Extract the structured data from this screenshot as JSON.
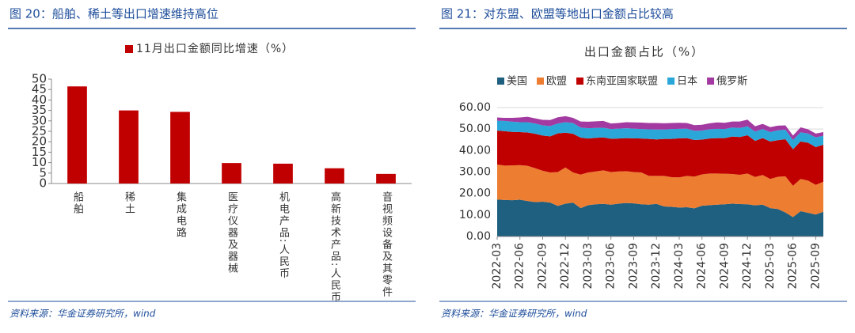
{
  "chart_data": [
    {
      "type": "bar",
      "caption": "图 20：船舶、稀土等出口增速维持高位",
      "source": "资料来源：华金证券研究所，wind",
      "categories": [
        "船舶",
        "稀土",
        "集成电路",
        "医疗仪器及器械",
        "机电产品:人民币",
        "高新技术产品:人民币",
        "音视频设备及其零件"
      ],
      "series": [
        {
          "name": "11月出口金额同比增速（%）",
          "color": "#c00000",
          "values": [
            46.5,
            35.0,
            34.3,
            9.8,
            9.5,
            7.3,
            4.6
          ]
        }
      ],
      "ylim": [
        0,
        50
      ],
      "yticks": [
        0,
        5,
        10,
        15,
        20,
        25,
        30,
        35,
        40,
        45,
        50
      ],
      "grid": false
    },
    {
      "type": "stacked-area",
      "caption": "图 21：对东盟、欧盟等地出口金额占比较高",
      "title": "出口金额占比（%）",
      "source": "资料来源：华金证券研究所，wind",
      "categories": [
        "2022-03",
        null,
        null,
        "2022-06",
        null,
        null,
        "2022-09",
        null,
        null,
        "2022-12",
        null,
        null,
        "2023-03",
        null,
        null,
        "2023-06",
        null,
        null,
        "2023-09",
        null,
        null,
        "2023-12",
        null,
        null,
        "2024-03",
        null,
        null,
        "2024-06",
        null,
        null,
        "2024-09",
        null,
        null,
        "2024-12",
        null,
        null,
        "2025-03",
        null,
        null,
        "2025-06",
        null,
        null,
        "2025-09",
        null
      ],
      "series": [
        {
          "name": "美国",
          "color": "#1f5f7f",
          "values": [
            17.2,
            17.0,
            16.9,
            17.1,
            16.5,
            16.0,
            16.2,
            15.8,
            14.2,
            15.3,
            15.8,
            13.2,
            14.6,
            15.0,
            15.2,
            14.8,
            15.3,
            15.6,
            15.4,
            15.0,
            14.8,
            15.2,
            14.0,
            13.8,
            13.5,
            13.6,
            13.1,
            14.3,
            14.6,
            14.8,
            15.0,
            15.3,
            15.1,
            15.0,
            14.5,
            14.8,
            13.2,
            12.8,
            11.2,
            9.0,
            11.8,
            11.0,
            10.2,
            11.5
          ]
        },
        {
          "name": "欧盟",
          "color": "#ed7d31",
          "values": [
            16.3,
            16.0,
            16.2,
            16.1,
            16.4,
            15.8,
            14.4,
            14.0,
            15.8,
            16.8,
            14.0,
            15.6,
            15.2,
            15.3,
            15.6,
            15.2,
            15.0,
            14.8,
            14.6,
            14.8,
            13.4,
            13.0,
            14.2,
            13.8,
            14.0,
            14.6,
            14.8,
            14.6,
            14.7,
            14.5,
            14.2,
            13.8,
            13.6,
            14.3,
            13.2,
            13.8,
            13.6,
            15.0,
            16.8,
            14.6,
            15.0,
            15.0,
            13.8,
            14.0
          ]
        },
        {
          "name": "东南亚国家联盟",
          "color": "#c00000",
          "values": [
            15.8,
            16.0,
            15.6,
            15.4,
            15.5,
            16.0,
            16.4,
            16.8,
            18.0,
            16.2,
            18.0,
            17.2,
            15.8,
            15.6,
            15.3,
            15.5,
            15.3,
            15.4,
            15.7,
            15.8,
            17.2,
            17.0,
            17.2,
            17.8,
            18.2,
            17.6,
            17.0,
            16.2,
            16.3,
            16.5,
            16.6,
            17.4,
            17.6,
            17.8,
            16.8,
            17.2,
            17.4,
            17.0,
            17.3,
            17.0,
            17.4,
            17.6,
            17.6,
            17.2
          ]
        },
        {
          "name": "日本",
          "color": "#2aa7d8",
          "values": [
            4.6,
            4.8,
            4.7,
            4.6,
            4.8,
            4.8,
            4.7,
            4.8,
            4.6,
            4.9,
            5.0,
            4.7,
            4.8,
            4.6,
            4.5,
            4.5,
            4.6,
            4.6,
            4.5,
            4.4,
            4.5,
            4.6,
            4.4,
            4.6,
            4.4,
            4.4,
            4.3,
            4.2,
            4.3,
            4.3,
            4.2,
            4.2,
            4.2,
            4.2,
            4.3,
            4.2,
            4.4,
            4.6,
            4.4,
            4.3,
            4.3,
            4.3,
            4.5,
            4.2
          ]
        },
        {
          "name": "俄罗斯",
          "color": "#a33aa1",
          "values": [
            1.5,
            1.4,
            1.8,
            2.2,
            2.5,
            2.4,
            2.6,
            2.8,
            2.9,
            2.8,
            2.4,
            2.8,
            3.0,
            3.1,
            3.2,
            2.6,
            2.6,
            2.8,
            2.9,
            3.0,
            2.9,
            3.0,
            2.9,
            2.8,
            2.8,
            2.6,
            2.6,
            2.7,
            2.8,
            3.0,
            2.9,
            2.8,
            3.0,
            3.1,
            2.5,
            2.4,
            2.3,
            2.2,
            2.0,
            2.1,
            2.3,
            2.0,
            1.8,
            1.7
          ]
        }
      ],
      "ylim": [
        0,
        60
      ],
      "yticks": [
        {
          "value": 0,
          "label": "0.00"
        },
        {
          "value": 10,
          "label": "10.00"
        },
        {
          "value": 20,
          "label": "20.00"
        },
        {
          "value": 30,
          "label": "30.00"
        },
        {
          "value": 40,
          "label": "40.00"
        },
        {
          "value": 50,
          "label": "50.00"
        },
        {
          "value": 60,
          "label": "60.00"
        }
      ],
      "grid": true
    }
  ]
}
